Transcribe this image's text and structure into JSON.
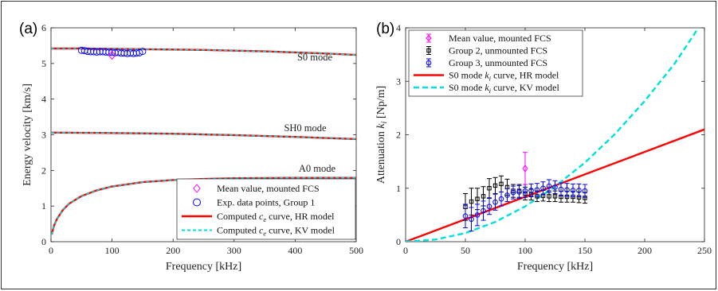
{
  "chart_data": [
    {
      "panel": "(a)",
      "type": "line",
      "xlabel": "Frequency [kHz]",
      "ylabel": "Energy velocity [km/s]",
      "xlim": [
        0,
        500
      ],
      "ylim": [
        0,
        6
      ],
      "xticks": [
        0,
        100,
        200,
        300,
        400,
        500
      ],
      "yticks": [
        0,
        1,
        2,
        3,
        4,
        5,
        6
      ],
      "grid": false,
      "legend_position": "bottom-right",
      "annotations": [
        "S0 mode",
        "SH0 mode",
        "A0 mode"
      ],
      "legend": [
        {
          "label": "Mean value, mounted FCS",
          "marker": "diamond",
          "color": "#ff00ff"
        },
        {
          "label": "Exp. data points, Group 1",
          "marker": "circle",
          "color": "#0000ff"
        },
        {
          "label": "Computed c_e curve, HR model",
          "style": "solid",
          "color": "#ff0000"
        },
        {
          "label": "Computed c_e curve, KV model",
          "style": "dashed",
          "color": "#00e0e0"
        }
      ],
      "series": [
        {
          "name": "S0 mode",
          "x": [
            0,
            50,
            100,
            150,
            200,
            250,
            300,
            350,
            400,
            450,
            500
          ],
          "y": [
            5.42,
            5.42,
            5.41,
            5.4,
            5.39,
            5.38,
            5.36,
            5.34,
            5.31,
            5.28,
            5.24
          ]
        },
        {
          "name": "SH0 mode",
          "x": [
            0,
            100,
            200,
            300,
            400,
            500
          ],
          "y": [
            3.06,
            3.05,
            3.03,
            2.99,
            2.94,
            2.88
          ]
        },
        {
          "name": "A0 mode",
          "x": [
            1,
            5,
            10,
            20,
            30,
            50,
            75,
            100,
            150,
            200,
            250,
            300,
            400,
            500
          ],
          "y": [
            0.2,
            0.45,
            0.65,
            0.9,
            1.07,
            1.28,
            1.44,
            1.55,
            1.67,
            1.73,
            1.76,
            1.78,
            1.79,
            1.79
          ]
        },
        {
          "name": "Exp. data points, Group 1",
          "x": [
            50,
            55,
            60,
            65,
            70,
            75,
            80,
            85,
            90,
            95,
            100,
            105,
            110,
            115,
            120,
            125,
            130,
            135,
            140,
            145,
            150
          ],
          "y": [
            5.37,
            5.36,
            5.34,
            5.33,
            5.33,
            5.32,
            5.33,
            5.33,
            5.32,
            5.31,
            5.31,
            5.3,
            5.31,
            5.29,
            5.29,
            5.28,
            5.29,
            5.28,
            5.29,
            5.3,
            5.34
          ]
        },
        {
          "name": "Mean value, mounted FCS",
          "x": [
            100
          ],
          "y": [
            5.23
          ]
        }
      ]
    },
    {
      "panel": "(b)",
      "type": "line",
      "xlabel": "Frequency [kHz]",
      "ylabel": "Attenuation k_i [Np/m]",
      "xlim": [
        0,
        250
      ],
      "ylim": [
        0,
        4
      ],
      "xticks": [
        0,
        50,
        100,
        150,
        200,
        250
      ],
      "yticks": [
        0,
        1,
        2,
        3,
        4
      ],
      "grid": false,
      "legend_position": "top-left",
      "legend": [
        {
          "label": "Mean value, mounted FCS",
          "marker": "diamond-errorbar",
          "color": "#ff00ff"
        },
        {
          "label": "Group 2, unmounted FCS",
          "marker": "square-errorbar",
          "color": "#000000"
        },
        {
          "label": "Group 3, unmounted FCS",
          "marker": "circle-errorbar",
          "color": "#0000ff"
        },
        {
          "label": "S0 mode k_i curve, HR model",
          "style": "solid",
          "color": "#ff0000"
        },
        {
          "label": "S0 mode k_i curve, KV model",
          "style": "dashed",
          "color": "#00e0e0"
        }
      ],
      "series": [
        {
          "name": "S0 mode k_i curve, HR model",
          "x": [
            0,
            250
          ],
          "y": [
            0,
            2.1
          ]
        },
        {
          "name": "S0 mode k_i curve, KV model",
          "x": [
            0,
            25,
            50,
            75,
            100,
            125,
            150,
            175,
            200,
            225,
            245
          ],
          "y": [
            0,
            0.04,
            0.16,
            0.37,
            0.66,
            1.03,
            1.48,
            2.01,
            2.63,
            3.33,
            4.0
          ]
        },
        {
          "name": "Mean value, mounted FCS",
          "x": [
            100
          ],
          "y": [
            1.37
          ],
          "err": [
            0.3
          ]
        },
        {
          "name": "Group 2, unmounted FCS",
          "x": [
            50,
            55,
            60,
            65,
            70,
            75,
            80,
            85,
            90,
            95,
            100,
            105,
            110,
            115,
            120,
            125,
            130,
            135,
            140,
            145,
            150
          ],
          "y": [
            0.65,
            0.75,
            0.8,
            0.85,
            1.0,
            1.05,
            1.08,
            1.02,
            0.95,
            0.95,
            0.9,
            0.88,
            0.85,
            0.86,
            0.85,
            0.85,
            0.84,
            0.84,
            0.84,
            0.83,
            0.82
          ],
          "err": [
            0.25,
            0.25,
            0.2,
            0.18,
            0.18,
            0.15,
            0.15,
            0.15,
            0.12,
            0.12,
            0.12,
            0.1,
            0.1,
            0.1,
            0.1,
            0.1,
            0.1,
            0.1,
            0.1,
            0.1,
            0.1
          ]
        },
        {
          "name": "Group 3, unmounted FCS",
          "x": [
            50,
            55,
            60,
            65,
            70,
            75,
            80,
            85,
            90,
            95,
            100,
            105,
            110,
            115,
            120,
            125,
            130,
            135,
            140,
            145,
            150
          ],
          "y": [
            0.48,
            0.42,
            0.5,
            0.58,
            0.66,
            0.74,
            0.8,
            0.87,
            0.92,
            0.93,
            0.95,
            0.96,
            0.97,
            1.0,
            1.04,
            1.02,
            0.98,
            0.97,
            0.96,
            0.96,
            0.95
          ],
          "err": [
            0.22,
            0.22,
            0.2,
            0.18,
            0.15,
            0.15,
            0.13,
            0.12,
            0.12,
            0.12,
            0.12,
            0.12,
            0.12,
            0.12,
            0.12,
            0.12,
            0.12,
            0.12,
            0.12,
            0.12,
            0.12
          ]
        }
      ]
    }
  ]
}
